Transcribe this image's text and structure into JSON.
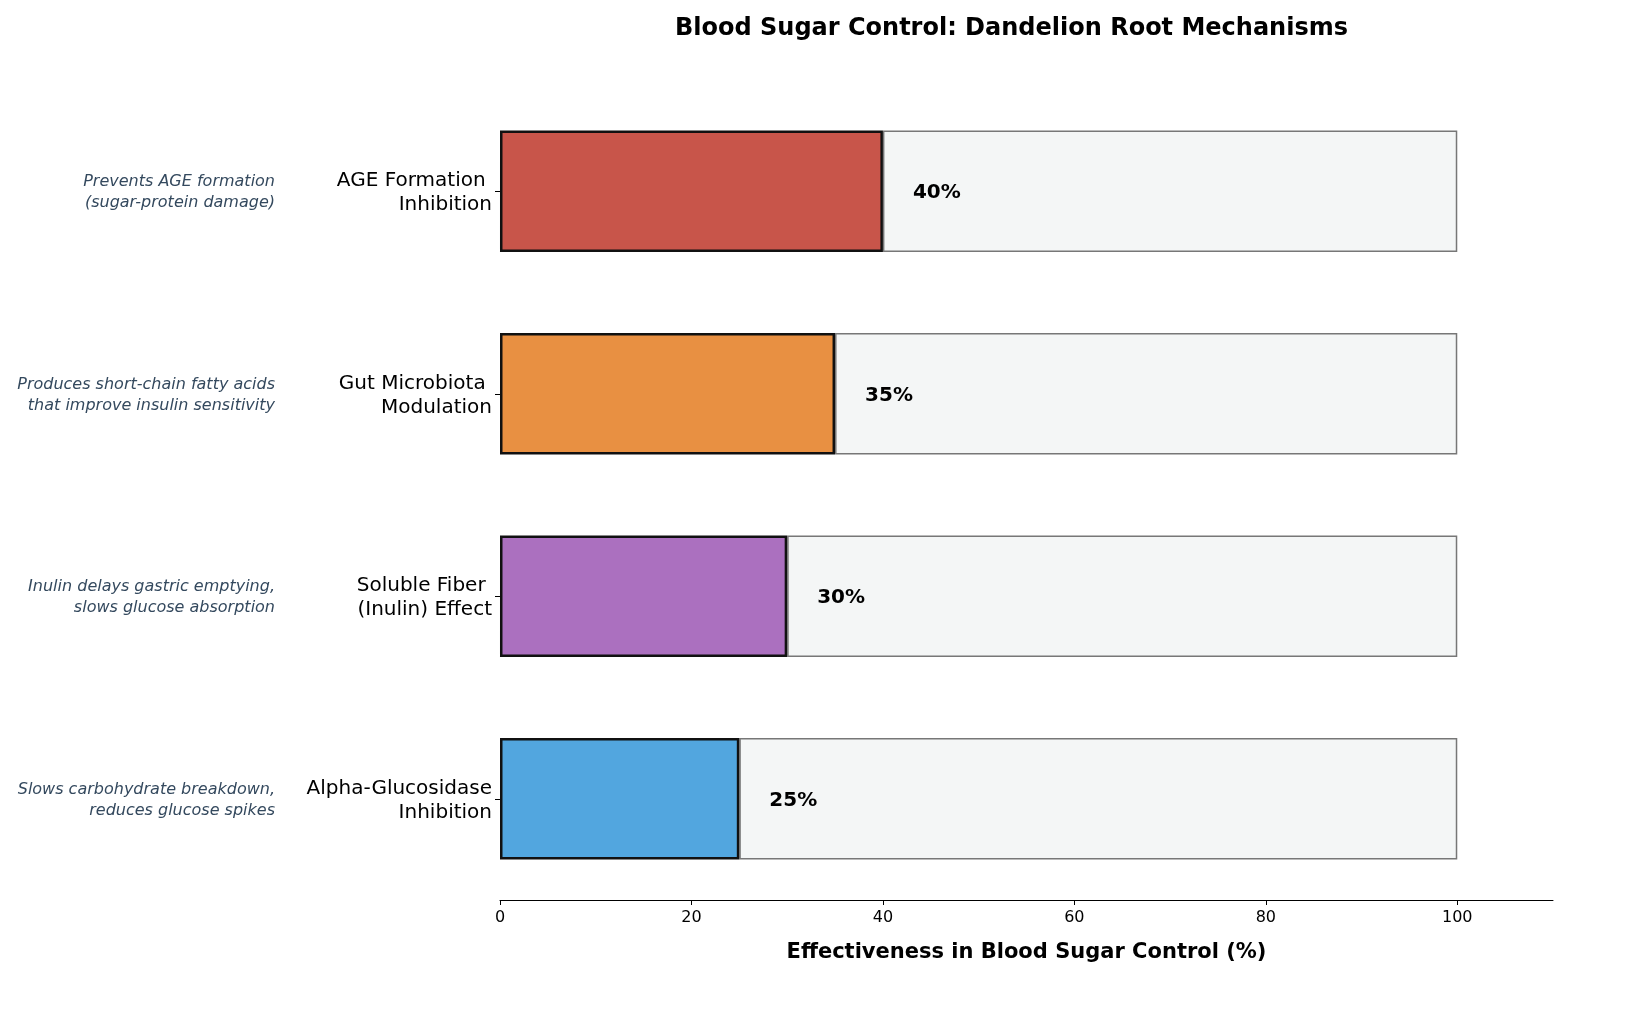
{
  "chart_data": {
    "type": "bar",
    "orientation": "horizontal",
    "stacked": true,
    "title": "Blood Sugar Control: Dandelion Root Mechanisms",
    "xlabel": "Effectiveness in Blood Sugar Control (%)",
    "categories": [
      "AGE Formation Inhibition",
      "Gut Microbiota Modulation",
      "Soluble Fiber (Inulin) Effect",
      "Alpha-Glucosidase Inhibition"
    ],
    "series": [
      {
        "colors": [
          "#c8554a",
          "#e89042",
          "#ab70bf",
          "#52a6df"
        ],
        "values": [
          40,
          35,
          30,
          25
        ],
        "value_labels": [
          "40%",
          "35%",
          "30%",
          "25%"
        ]
      },
      {
        "color": "#f4f6f6",
        "values": [
          60,
          65,
          70,
          75
        ]
      }
    ],
    "xlim": [
      0,
      110
    ],
    "xticks": [
      0,
      20,
      40,
      60,
      80,
      100
    ],
    "annotations": [
      "Prevents AGE formation\n(sugar-protein damage)",
      "Produces short-chain fatty acids\nthat improve insulin sensitivity",
      "Inulin delays gastric emptying,\nslows glucose absorption",
      "Slows carbohydrate breakdown,\nreduces glucose spikes"
    ]
  }
}
